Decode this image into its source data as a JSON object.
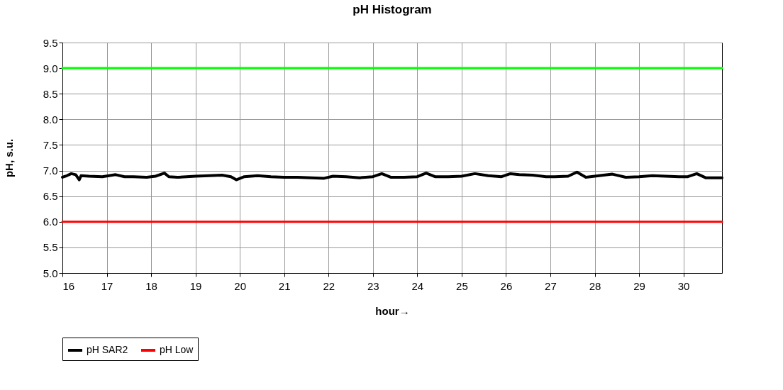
{
  "chart_data": {
    "type": "line",
    "title": "pH Histogram",
    "xlabel": "hour→",
    "ylabel": "pH, s.u.",
    "xlim": [
      16,
      30.87
    ],
    "xticks": [
      16,
      17,
      18,
      19,
      20,
      21,
      22,
      23,
      24,
      25,
      26,
      27,
      28,
      29,
      30
    ],
    "ylim": [
      5.0,
      9.5
    ],
    "yticks": [
      {
        "value": 5.0,
        "label": "5.0"
      },
      5.5,
      {
        "value": 6.0,
        "label": "6.0"
      },
      6.5,
      {
        "value": 7.0,
        "label": "7.0"
      },
      7.5,
      {
        "value": 8.0,
        "label": "8.0"
      },
      8.5,
      {
        "value": 9.0,
        "label": "9.0"
      },
      9.5
    ],
    "grid": true,
    "legend": "bottom",
    "marker": "none",
    "line_style": "solid",
    "series": [
      {
        "name": "pH SAR2",
        "color": "#000000",
        "x": [
          16.0,
          16.1,
          16.2,
          16.3,
          16.38,
          16.42,
          16.6,
          16.9,
          17.2,
          17.4,
          17.6,
          17.9,
          18.1,
          18.3,
          18.4,
          18.6,
          18.8,
          19.0,
          19.3,
          19.6,
          19.8,
          19.92,
          20.1,
          20.4,
          20.7,
          21.0,
          21.3,
          21.6,
          21.9,
          22.1,
          22.4,
          22.7,
          23.0,
          23.2,
          23.4,
          23.7,
          24.0,
          24.2,
          24.4,
          24.7,
          25.0,
          25.3,
          25.6,
          25.9,
          26.1,
          26.3,
          26.6,
          26.9,
          27.1,
          27.4,
          27.6,
          27.8,
          28.1,
          28.4,
          28.7,
          29.0,
          29.3,
          29.6,
          29.9,
          30.1,
          30.3,
          30.5,
          30.87
        ],
        "values": [
          6.87,
          6.9,
          6.94,
          6.92,
          6.82,
          6.9,
          6.89,
          6.88,
          6.92,
          6.88,
          6.88,
          6.87,
          6.89,
          6.95,
          6.88,
          6.87,
          6.88,
          6.89,
          6.9,
          6.91,
          6.88,
          6.82,
          6.88,
          6.9,
          6.88,
          6.87,
          6.87,
          6.86,
          6.85,
          6.89,
          6.88,
          6.86,
          6.88,
          6.94,
          6.87,
          6.87,
          6.88,
          6.95,
          6.88,
          6.88,
          6.89,
          6.94,
          6.9,
          6.88,
          6.94,
          6.92,
          6.91,
          6.88,
          6.88,
          6.89,
          6.97,
          6.87,
          6.9,
          6.93,
          6.87,
          6.88,
          6.9,
          6.89,
          6.88,
          6.88,
          6.94,
          6.86,
          6.86
        ]
      },
      {
        "name": "pH Low",
        "color": "#ff0000",
        "x": [
          16,
          30.87
        ],
        "values": [
          6.0,
          6.0
        ]
      },
      {
        "color": "#00ff00",
        "x": [
          16,
          30.87
        ],
        "values": [
          9.0,
          9.0
        ]
      }
    ]
  }
}
